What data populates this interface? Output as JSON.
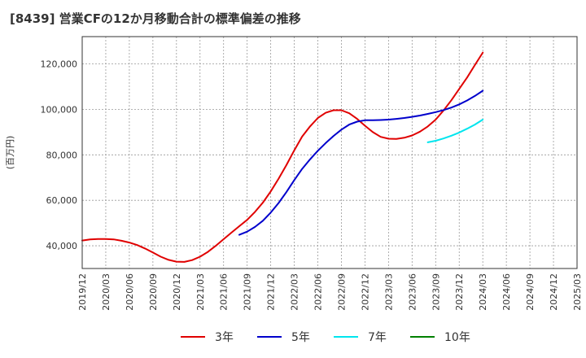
{
  "chart_data": {
    "type": "line",
    "title": "[8439]  営業CFの12か月移動合計の標準偏差の推移",
    "ylabel": "(百万円)",
    "xlabel": "",
    "ylim": [
      30000,
      132000
    ],
    "yticks": [
      40000,
      60000,
      80000,
      100000,
      120000
    ],
    "ytick_labels": [
      "40,000",
      "60,000",
      "80,000",
      "100,000",
      "120,000"
    ],
    "x_ticks": [
      "2019/12",
      "2020/03",
      "2020/06",
      "2020/09",
      "2020/12",
      "2021/03",
      "2021/06",
      "2021/09",
      "2021/12",
      "2022/03",
      "2022/06",
      "2022/09",
      "2022/12",
      "2023/03",
      "2023/06",
      "2023/09",
      "2023/12",
      "2024/03",
      "2024/06",
      "2024/09",
      "2024/12",
      "2025/03"
    ],
    "grid": true,
    "legend_position": "bottom",
    "series": [
      {
        "name": "3年",
        "color": "#e00000",
        "x": [
          "2019/12",
          "2020/01",
          "2020/02",
          "2020/03",
          "2020/04",
          "2020/05",
          "2020/06",
          "2020/07",
          "2020/08",
          "2020/09",
          "2020/10",
          "2020/11",
          "2020/12",
          "2021/01",
          "2021/02",
          "2021/03",
          "2021/04",
          "2021/05",
          "2021/06",
          "2021/07",
          "2021/08",
          "2021/09",
          "2021/10",
          "2021/11",
          "2021/12",
          "2022/01",
          "2022/02",
          "2022/03",
          "2022/04",
          "2022/05",
          "2022/06",
          "2022/07",
          "2022/08",
          "2022/09",
          "2022/10",
          "2022/11",
          "2022/12",
          "2023/01",
          "2023/02",
          "2023/03",
          "2023/04",
          "2023/05",
          "2023/06",
          "2023/07",
          "2023/08",
          "2023/09",
          "2023/10",
          "2023/11",
          "2023/12",
          "2024/01",
          "2024/02",
          "2024/03"
        ],
        "values": [
          42300,
          42800,
          43000,
          43000,
          42800,
          42200,
          41400,
          40300,
          38800,
          37000,
          35200,
          33800,
          33000,
          32900,
          33700,
          35200,
          37300,
          40000,
          42900,
          45800,
          48600,
          51400,
          54900,
          59000,
          63900,
          69500,
          75500,
          82000,
          88000,
          92500,
          96200,
          98500,
          99600,
          99600,
          98300,
          95800,
          92800,
          90000,
          87900,
          87100,
          87000,
          87500,
          88500,
          90200,
          92500,
          95500,
          99500,
          104000,
          109000,
          114000,
          119500,
          125000
        ]
      },
      {
        "name": "5年",
        "color": "#0000cc",
        "x": [
          "2021/08",
          "2021/09",
          "2021/10",
          "2021/11",
          "2021/12",
          "2022/01",
          "2022/02",
          "2022/03",
          "2022/04",
          "2022/05",
          "2022/06",
          "2022/07",
          "2022/08",
          "2022/09",
          "2022/10",
          "2022/11",
          "2022/12",
          "2023/01",
          "2023/02",
          "2023/03",
          "2023/04",
          "2023/05",
          "2023/06",
          "2023/07",
          "2023/08",
          "2023/09",
          "2023/10",
          "2023/11",
          "2023/12",
          "2024/01",
          "2024/02",
          "2024/03"
        ],
        "values": [
          44800,
          46200,
          48300,
          51000,
          54600,
          58800,
          63600,
          68900,
          73800,
          78000,
          81800,
          85200,
          88300,
          91100,
          93300,
          94600,
          95200,
          95200,
          95300,
          95500,
          95800,
          96200,
          96700,
          97300,
          98000,
          98800,
          99700,
          100800,
          102200,
          103900,
          105900,
          108200
        ]
      },
      {
        "name": "7年",
        "color": "#00e5ee",
        "x": [
          "2023/08",
          "2023/09",
          "2023/10",
          "2023/11",
          "2023/12",
          "2024/01",
          "2024/02",
          "2024/03"
        ],
        "values": [
          85500,
          86200,
          87200,
          88400,
          89800,
          91500,
          93300,
          95500
        ]
      },
      {
        "name": "10年",
        "color": "#008000",
        "x": [],
        "values": []
      }
    ]
  }
}
